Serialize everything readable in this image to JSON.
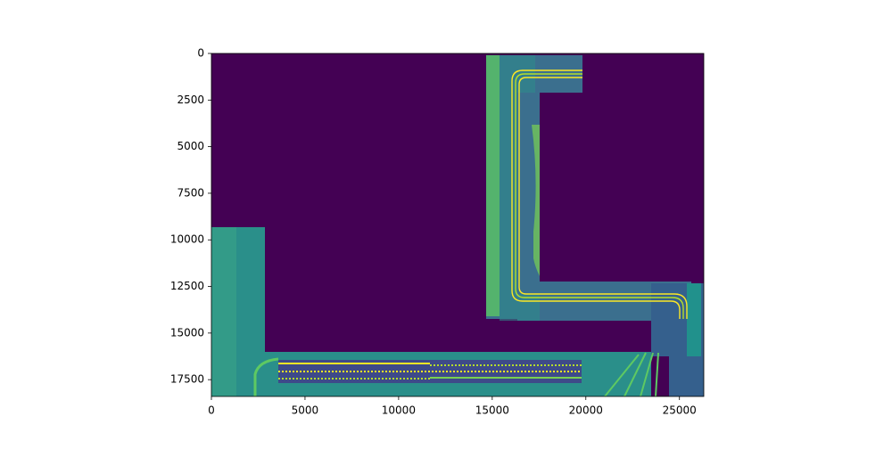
{
  "chart_data": {
    "type": "image",
    "xlim": [
      0,
      26300
    ],
    "ylim": [
      18400,
      0
    ],
    "xticks": [
      0,
      5000,
      10000,
      15000,
      20000,
      25000
    ],
    "yticks": [
      0,
      2500,
      5000,
      7500,
      10000,
      12500,
      15000,
      17500
    ]
  }
}
